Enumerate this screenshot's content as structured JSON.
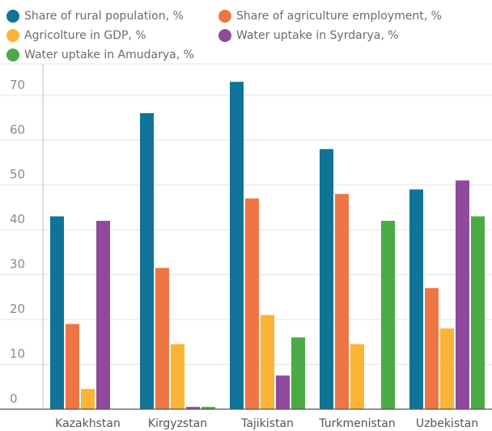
{
  "chart_data": {
    "type": "bar",
    "title": "",
    "xlabel": "",
    "ylabel": "",
    "ylim": [
      0,
      77
    ],
    "yticks": [
      0,
      10,
      20,
      30,
      40,
      50,
      60,
      70
    ],
    "grid": true,
    "legend_position": "top",
    "categories": [
      "Kazakhstan",
      "Kirgyzstan",
      "Tajikistan",
      "Turkmenistan",
      "Uzbekistan"
    ],
    "series": [
      {
        "name": "Share of rural population, %",
        "color": "#0f7497",
        "values": [
          43,
          66,
          73,
          58,
          49
        ]
      },
      {
        "name": "Share of agriculture employment, %",
        "color": "#ee7645",
        "values": [
          19,
          31.5,
          47,
          48,
          27
        ]
      },
      {
        "name": "Agricolture in GDP, %",
        "color": "#fbb435",
        "values": [
          4.5,
          14.5,
          21,
          14.5,
          18
        ]
      },
      {
        "name": "Water uptake in Syrdarya, %",
        "color": "#8f4a9d",
        "values": [
          42,
          0.5,
          7.5,
          null,
          51
        ]
      },
      {
        "name": "Water uptake in Amudarya, %",
        "color": "#4aab46",
        "values": [
          null,
          0.5,
          16,
          42,
          43
        ]
      }
    ]
  }
}
